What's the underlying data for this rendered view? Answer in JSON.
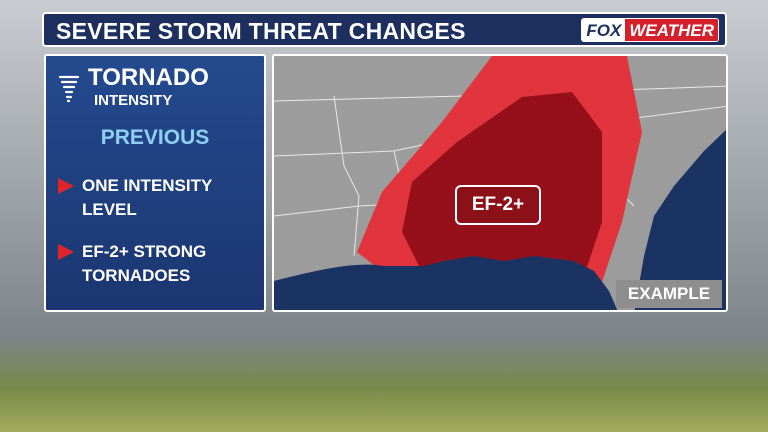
{
  "header": {
    "title": "SEVERE STORM THREAT CHANGES",
    "logo": {
      "left": "FOX",
      "right": "WEATHER"
    }
  },
  "panel": {
    "title": "TORNADO",
    "subtitle": "INTENSITY",
    "section": "PREVIOUS",
    "bullets": [
      "ONE INTENSITY LEVEL",
      "EF-2+ STRONG TORNADOES"
    ]
  },
  "map": {
    "label": "EF-2+",
    "tag": "EXAMPLE"
  }
}
